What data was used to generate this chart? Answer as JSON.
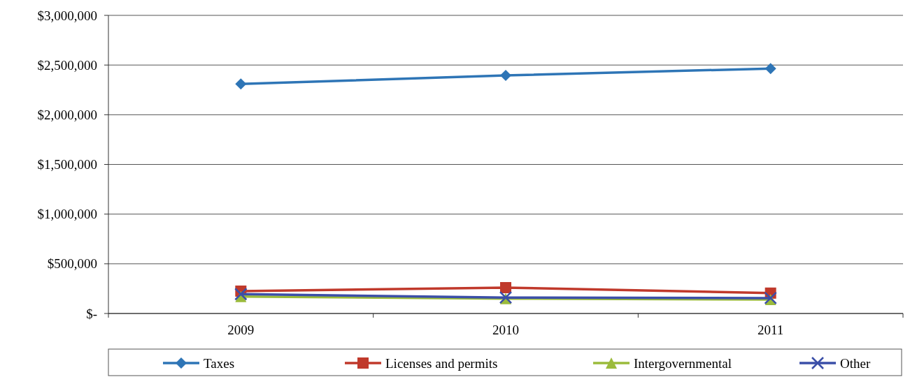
{
  "chart_data": {
    "type": "line",
    "categories": [
      "2009",
      "2010",
      "2011"
    ],
    "series": [
      {
        "name": "Taxes",
        "color": "#2e75b6",
        "marker": "diamond",
        "values": [
          2310000,
          2395000,
          2465000
        ]
      },
      {
        "name": "Licenses and permits",
        "color": "#c0392b",
        "marker": "square",
        "values": [
          225000,
          260000,
          205000
        ]
      },
      {
        "name": "Intergovernmental",
        "color": "#9bbb3b",
        "marker": "triangle",
        "values": [
          170000,
          150000,
          140000
        ]
      },
      {
        "name": "Other",
        "color": "#3b4fa8",
        "marker": "cross",
        "values": [
          195000,
          160000,
          155000
        ]
      }
    ],
    "ylim": [
      0,
      3000000
    ],
    "yticks": [
      {
        "value": 0,
        "label": "$-"
      },
      {
        "value": 500000,
        "label": "$500,000"
      },
      {
        "value": 1000000,
        "label": "$1,000,000"
      },
      {
        "value": 1500000,
        "label": "$1,500,000"
      },
      {
        "value": 2000000,
        "label": "$2,000,000"
      },
      {
        "value": 2500000,
        "label": "$2,500,000"
      },
      {
        "value": 3000000,
        "label": "$3,000,000"
      }
    ],
    "grid": "y",
    "legend": "bottom"
  }
}
